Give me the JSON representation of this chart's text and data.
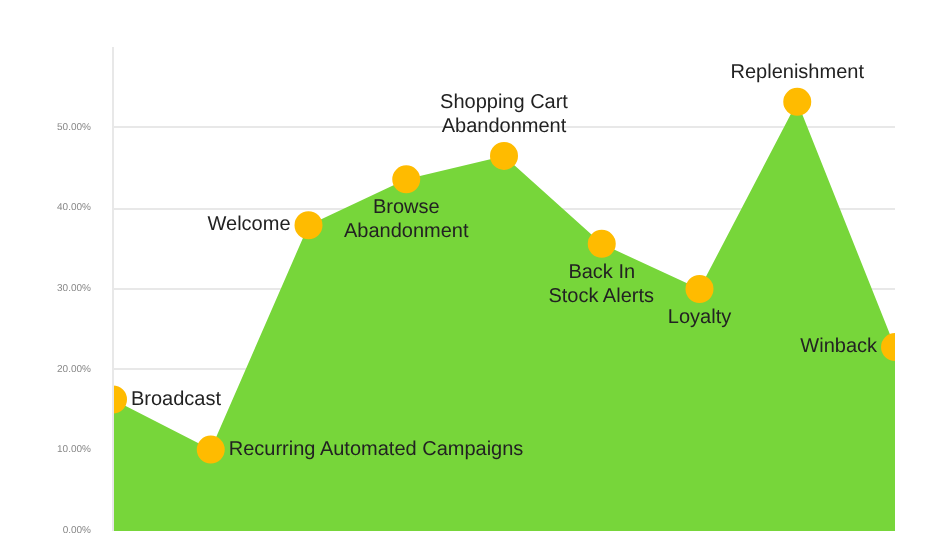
{
  "chart_data": {
    "type": "area",
    "categories": [
      null,
      null,
      null,
      null,
      null,
      null,
      null,
      null,
      null
    ],
    "series": [
      {
        "color": "#77d63a",
        "values": [
          16.3,
          10.1,
          37.9,
          43.6,
          46.5,
          35.6,
          30.0,
          53.2,
          22.8
        ]
      },
      {
        "type": "scatter",
        "marker": "circle",
        "color": "#ffbb00",
        "values": [
          16.3,
          10.1,
          37.9,
          43.6,
          46.5,
          35.6,
          30.0,
          53.2,
          22.8
        ]
      }
    ],
    "annotations": [
      "Broadcast",
      "Recurring Automated Campaigns",
      "Welcome",
      "Browse\nAbandonment",
      "Shopping Cart\nAbandonment",
      "Back In\nStock Alerts",
      "Loyalty",
      "Replenishment",
      "Winback"
    ],
    "ylim": [
      0,
      60
    ],
    "yticks": [
      {
        "value": 0,
        "label": "0.00%"
      },
      {
        "value": 10,
        "label": "10.00%"
      },
      {
        "value": 20,
        "label": "20.00%"
      },
      {
        "value": 30,
        "label": "30.00%"
      },
      {
        "value": 40,
        "label": "40.00%"
      },
      {
        "value": 50,
        "label": "50.00%"
      }
    ],
    "grid": "y",
    "tick_labels": "y"
  }
}
